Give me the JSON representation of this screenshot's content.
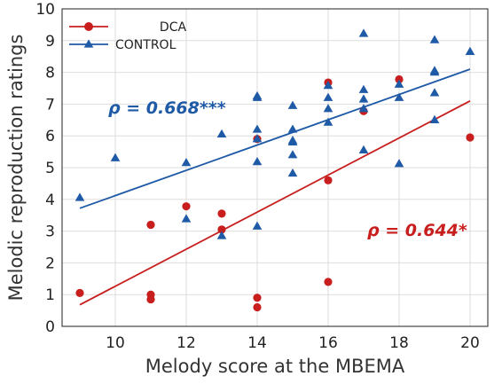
{
  "chart_data": {
    "type": "scatter",
    "xlabel": "Melody score at the MBEMA",
    "ylabel": "Melodic reproduction ratings",
    "xlim": [
      8.5,
      20.5
    ],
    "ylim": [
      0,
      10
    ],
    "xticks": [
      10,
      12,
      14,
      16,
      18,
      20
    ],
    "yticks": [
      0,
      1,
      2,
      3,
      4,
      5,
      6,
      7,
      8,
      9,
      10
    ],
    "grid": true,
    "legend_position": "top-left",
    "series": [
      {
        "name": "DCA",
        "marker": "circle",
        "color": "#c81e1e",
        "points": [
          [
            9,
            1.05
          ],
          [
            11,
            3.2
          ],
          [
            11,
            1.0
          ],
          [
            11,
            0.85
          ],
          [
            12,
            3.78
          ],
          [
            13,
            3.55
          ],
          [
            13,
            3.05
          ],
          [
            14,
            5.9
          ],
          [
            14,
            0.9
          ],
          [
            14,
            0.6
          ],
          [
            16,
            7.68
          ],
          [
            16,
            4.6
          ],
          [
            16,
            1.4
          ],
          [
            17,
            6.78
          ],
          [
            18,
            7.78
          ],
          [
            20,
            5.95
          ]
        ],
        "trend": [
          [
            9,
            0.68
          ],
          [
            20,
            7.1
          ]
        ],
        "annotation": "ρ = 0.644*"
      },
      {
        "name": "CONTROL",
        "marker": "triangle",
        "color": "#1f5aa6",
        "points": [
          [
            9,
            4.05
          ],
          [
            10,
            5.3
          ],
          [
            12,
            5.15
          ],
          [
            12,
            3.38
          ],
          [
            13,
            6.05
          ],
          [
            13,
            2.85
          ],
          [
            14,
            7.25
          ],
          [
            14,
            7.2
          ],
          [
            14,
            6.2
          ],
          [
            14,
            5.9
          ],
          [
            14,
            5.18
          ],
          [
            14,
            3.15
          ],
          [
            15,
            6.95
          ],
          [
            15,
            6.2
          ],
          [
            15,
            5.85
          ],
          [
            15,
            5.8
          ],
          [
            15,
            5.4
          ],
          [
            15,
            4.82
          ],
          [
            16,
            7.58
          ],
          [
            16,
            7.2
          ],
          [
            16,
            6.85
          ],
          [
            16,
            6.42
          ],
          [
            17,
            9.22
          ],
          [
            17,
            7.45
          ],
          [
            17,
            7.15
          ],
          [
            17,
            6.85
          ],
          [
            17,
            5.55
          ],
          [
            18,
            7.62
          ],
          [
            18,
            7.2
          ],
          [
            18,
            5.12
          ],
          [
            19,
            9.02
          ],
          [
            19,
            8.05
          ],
          [
            19,
            8.0
          ],
          [
            19,
            7.35
          ],
          [
            19,
            6.5
          ],
          [
            20,
            8.65
          ]
        ],
        "trend": [
          [
            9,
            3.72
          ],
          [
            20,
            8.1
          ]
        ],
        "annotation": "ρ = 0.668***"
      }
    ]
  }
}
